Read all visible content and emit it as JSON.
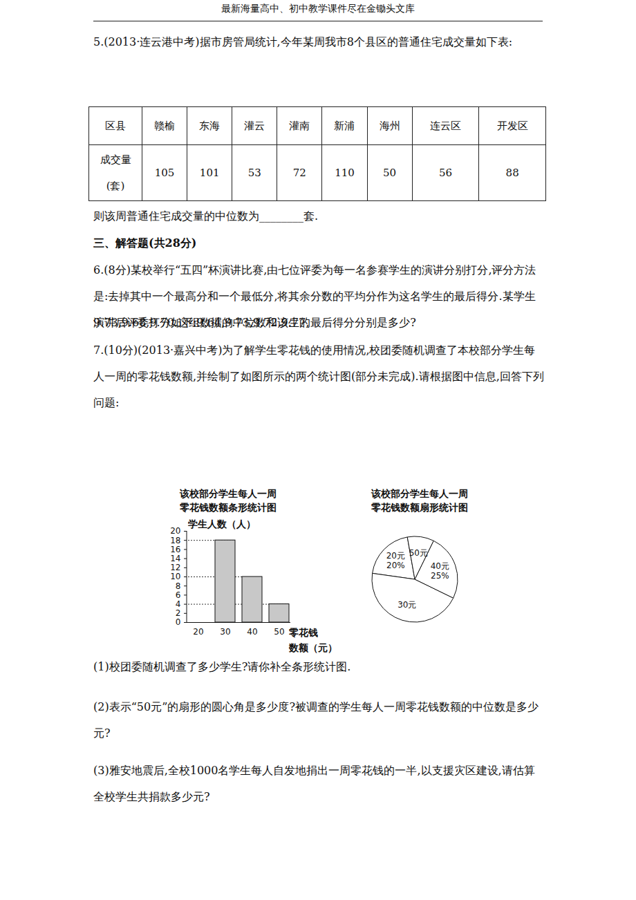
{
  "header": "最新海量高中、初中教学课件尽在金锄头文库",
  "q5": {
    "text": "5.(2013·连云港中考)据市房管局统计,今年某周我市8个县区的普通住宅成交量如下表:",
    "table": {
      "rows": [
        [
          "区县",
          "赣榆",
          "东海",
          "灌云",
          "灌南",
          "新浦",
          "海州",
          "连云区",
          "开发区"
        ],
        [
          "成交量(套)",
          105,
          101,
          53,
          72,
          110,
          50,
          56,
          88
        ]
      ]
    },
    "after": "则该周普通住宅成交量的中位数为________套."
  },
  "section": "三、解答题(共28分)",
  "q6": {
    "text": [
      "6.(8分)某校举行“五四”杯演讲比赛,由七位评委为每一名参赛学生的演讲分别打分,评分方法是:去掉其中一个最高分和一个最低分,将其余分数的平均分作为这名学生的最后得分.某学生演讲后评委打分如下:9.64,9.73,9.72,9.77,",
      "9.73,9.68,9.70.这组数据的中位数和该生的最后得分分别是多少?"
    ]
  },
  "q7": {
    "text": "7.(10分)(2013·嘉兴中考)为了解学生零花钱的使用情况,校团委随机调查了本校部分学生每人一周的零花钱数额,并绘制了如图所示的两个统计图(部分未完成).请根据图中信息,回答下列问题:",
    "questions": [
      "(1)校团委随机调查了多少学生?请你补全条形统计图.",
      "(2)表示“50元”的扇形的圆心角是多少度?被调查的学生每人一周零花钱数额的中位数是多少元?",
      "(3)雅安地震后,全校1000名学生每人自发地捐出一周零花钱的一半,以支援灾区建设,请估算全校学生共捐款多少元?"
    ]
  },
  "chart_data": [
    {
      "type": "bar",
      "title": "该校部分学生每人一周\n零花钱数额条形统计图",
      "xlabel": "零花钱\n数额（元）",
      "ylabel": "学生人数（人）",
      "categories": [
        "20",
        "30",
        "40",
        "50"
      ],
      "values": [
        null,
        18,
        10,
        4
      ],
      "color": "#c8c8c8",
      "ylim": [
        0,
        20
      ],
      "yticks": [
        0,
        2,
        4,
        6,
        8,
        10,
        12,
        14,
        16,
        18,
        20
      ]
    },
    {
      "type": "pie",
      "title": "该校部分学生每人一周\n零花钱数额扇形统计图",
      "categories": [
        "20元",
        "30元",
        "40元",
        "50元"
      ],
      "values": [
        20,
        45,
        25,
        10
      ],
      "value_labels": [
        "20%",
        null,
        "25%",
        null
      ],
      "color": "#ffffff"
    }
  ]
}
